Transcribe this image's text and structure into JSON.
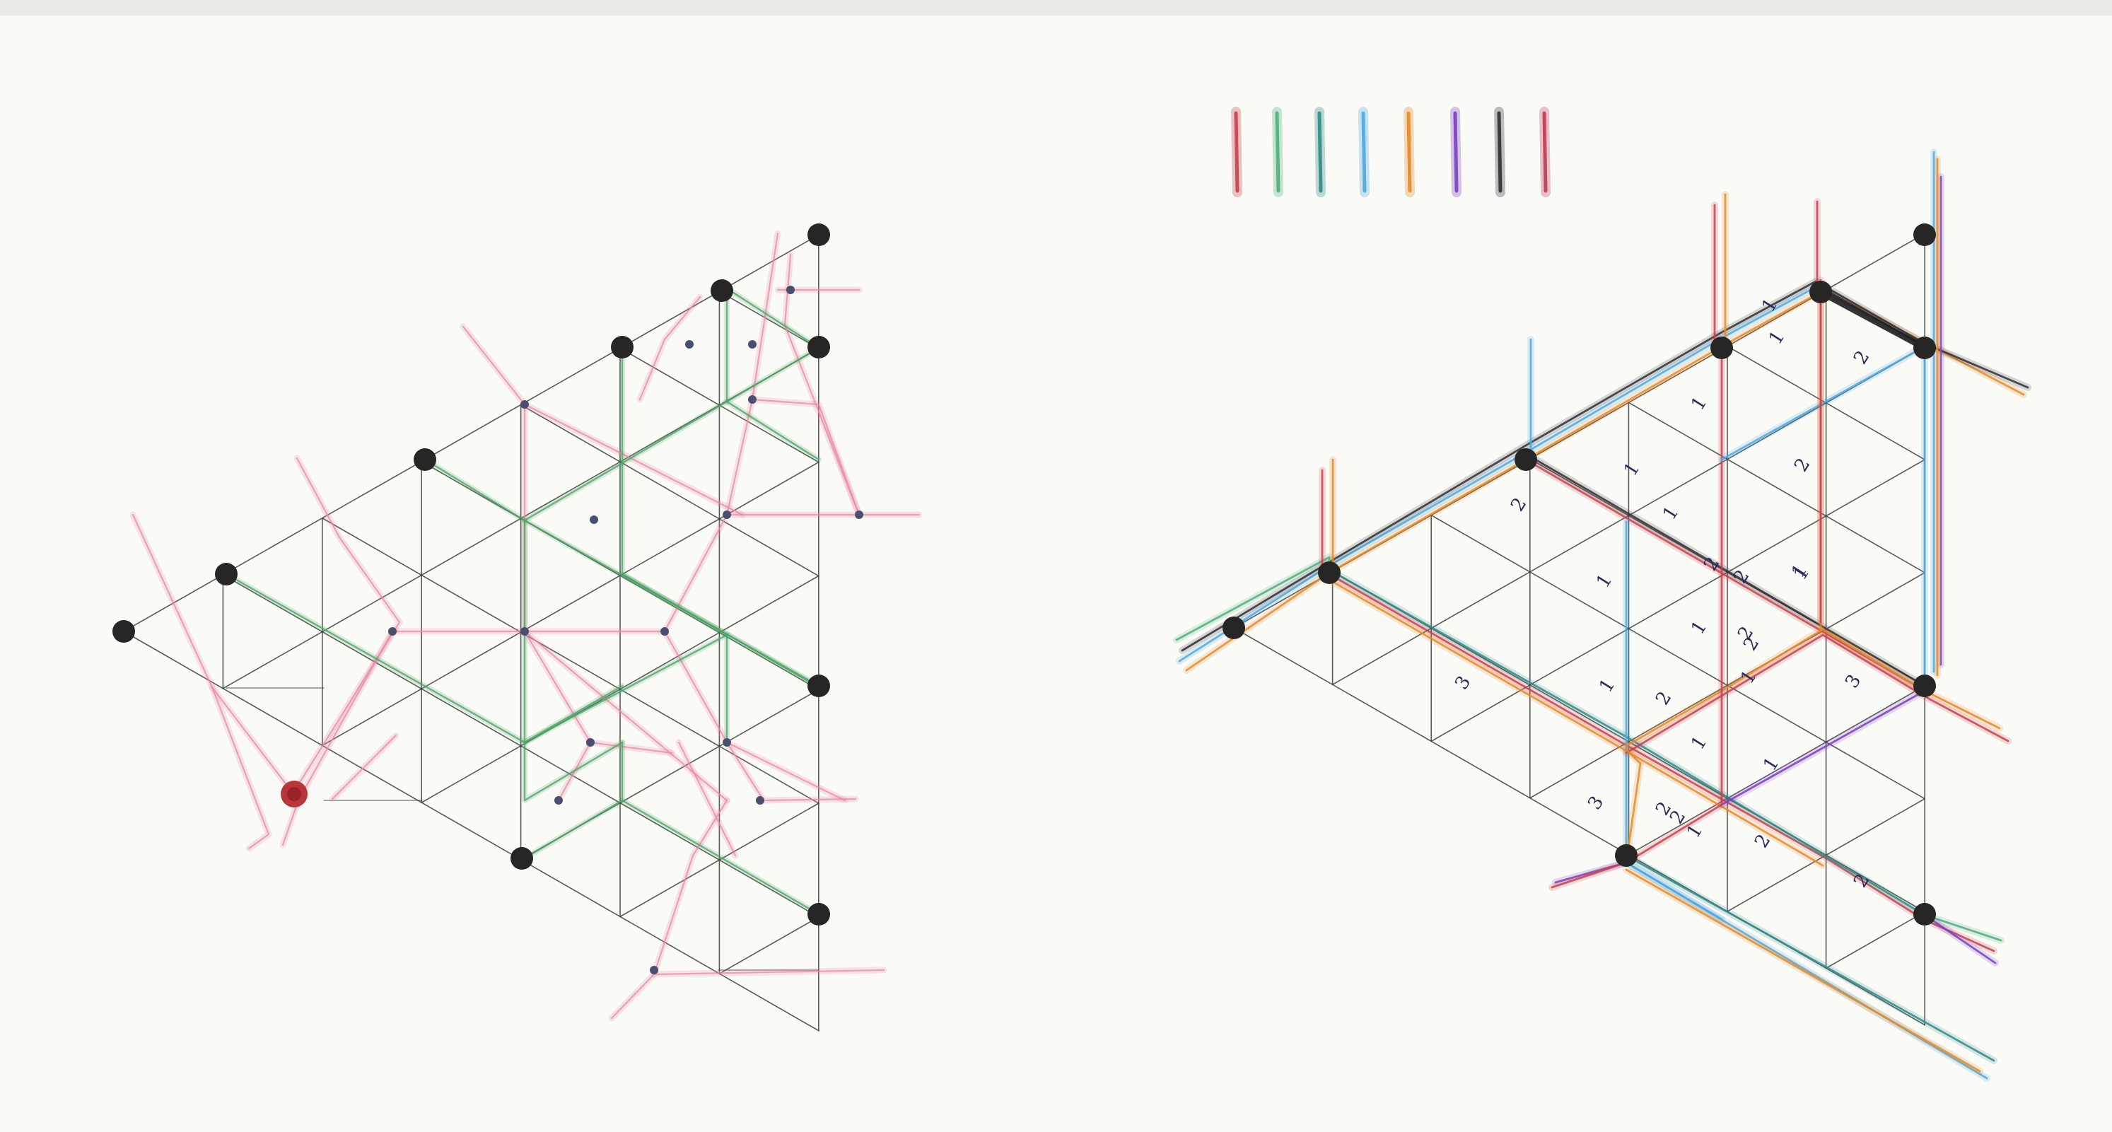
{
  "left_drawing": {
    "lattice": "triangular",
    "black_node_count": 11,
    "small_node_count": 16,
    "red_marker_count": 1,
    "line_colors": [
      "#e88aa3",
      "#4fa46a"
    ]
  },
  "right_drawing": {
    "lattice": "triangular",
    "black_node_count": 11,
    "line_colors": [
      "#c8404c",
      "#4fae7a",
      "#2f8a86",
      "#4fa8e0",
      "#e58a28",
      "#7a3fc0",
      "#2e2e34",
      "#c03a52"
    ],
    "edge_weight_labels": [
      "1",
      "1",
      "2",
      "1",
      "2",
      "1",
      "1",
      "2",
      "2",
      "1",
      "2",
      "1",
      "1",
      "2",
      "2",
      "1",
      "3",
      "2",
      "1",
      "1",
      "1",
      "3",
      "3",
      "2",
      "1",
      "1",
      "2",
      "2",
      "2"
    ]
  },
  "color_legend": {
    "swatches": [
      "#c8404c",
      "#4fae7a",
      "#2f8a86",
      "#4fa8e0",
      "#e58a28",
      "#7a3fc0",
      "#2e2e34",
      "#c03a52"
    ]
  }
}
